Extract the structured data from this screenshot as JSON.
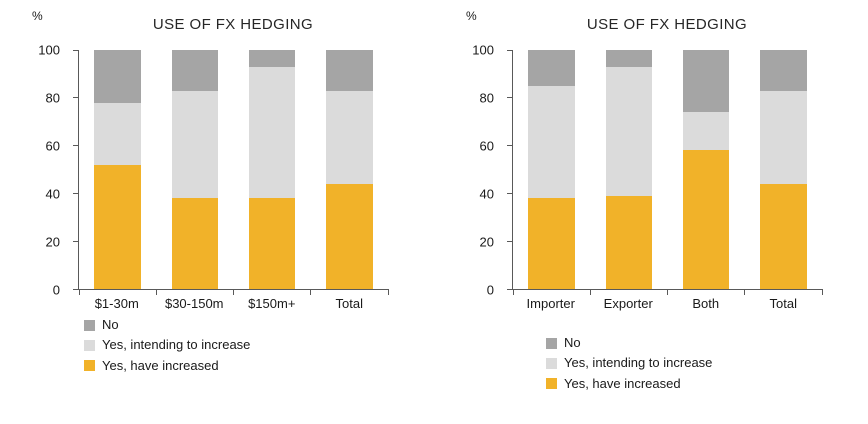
{
  "chart_data": [
    {
      "type": "bar",
      "stacked": true,
      "title": "USE OF FX HEDGING",
      "ylabel": "%",
      "xlabel": "",
      "ylim": [
        0,
        100
      ],
      "yticks": [
        0,
        20,
        40,
        60,
        80,
        100
      ],
      "grid": false,
      "legend_position": "bottom-left",
      "categories": [
        "$1-30m",
        "$30-150m",
        "$150m+",
        "Total"
      ],
      "series": [
        {
          "name": "Yes, have increased",
          "color": "#F1B229",
          "values": [
            52,
            38,
            38,
            44
          ]
        },
        {
          "name": "Yes, intending to increase",
          "color": "#DBDBDB",
          "values": [
            26,
            45,
            55,
            39
          ]
        },
        {
          "name": "No",
          "color": "#A5A5A5",
          "values": [
            22,
            17,
            7,
            17
          ]
        }
      ],
      "legend": [
        "No",
        "Yes, intending to increase",
        "Yes, have increased"
      ]
    },
    {
      "type": "bar",
      "stacked": true,
      "title": "USE OF FX HEDGING",
      "ylabel": "%",
      "xlabel": "",
      "ylim": [
        0,
        100
      ],
      "yticks": [
        0,
        20,
        40,
        60,
        80,
        100
      ],
      "grid": false,
      "legend_position": "bottom-left",
      "categories": [
        "Importer",
        "Exporter",
        "Both",
        "Total"
      ],
      "series": [
        {
          "name": "Yes, have increased",
          "color": "#F1B229",
          "values": [
            38,
            39,
            58,
            44
          ]
        },
        {
          "name": "Yes, intending to increase",
          "color": "#DBDBDB",
          "values": [
            47,
            54,
            16,
            39
          ]
        },
        {
          "name": "No",
          "color": "#A5A5A5",
          "values": [
            15,
            7,
            26,
            17
          ]
        }
      ],
      "legend": [
        "No",
        "Yes, intending to increase",
        "Yes, have increased"
      ]
    }
  ]
}
